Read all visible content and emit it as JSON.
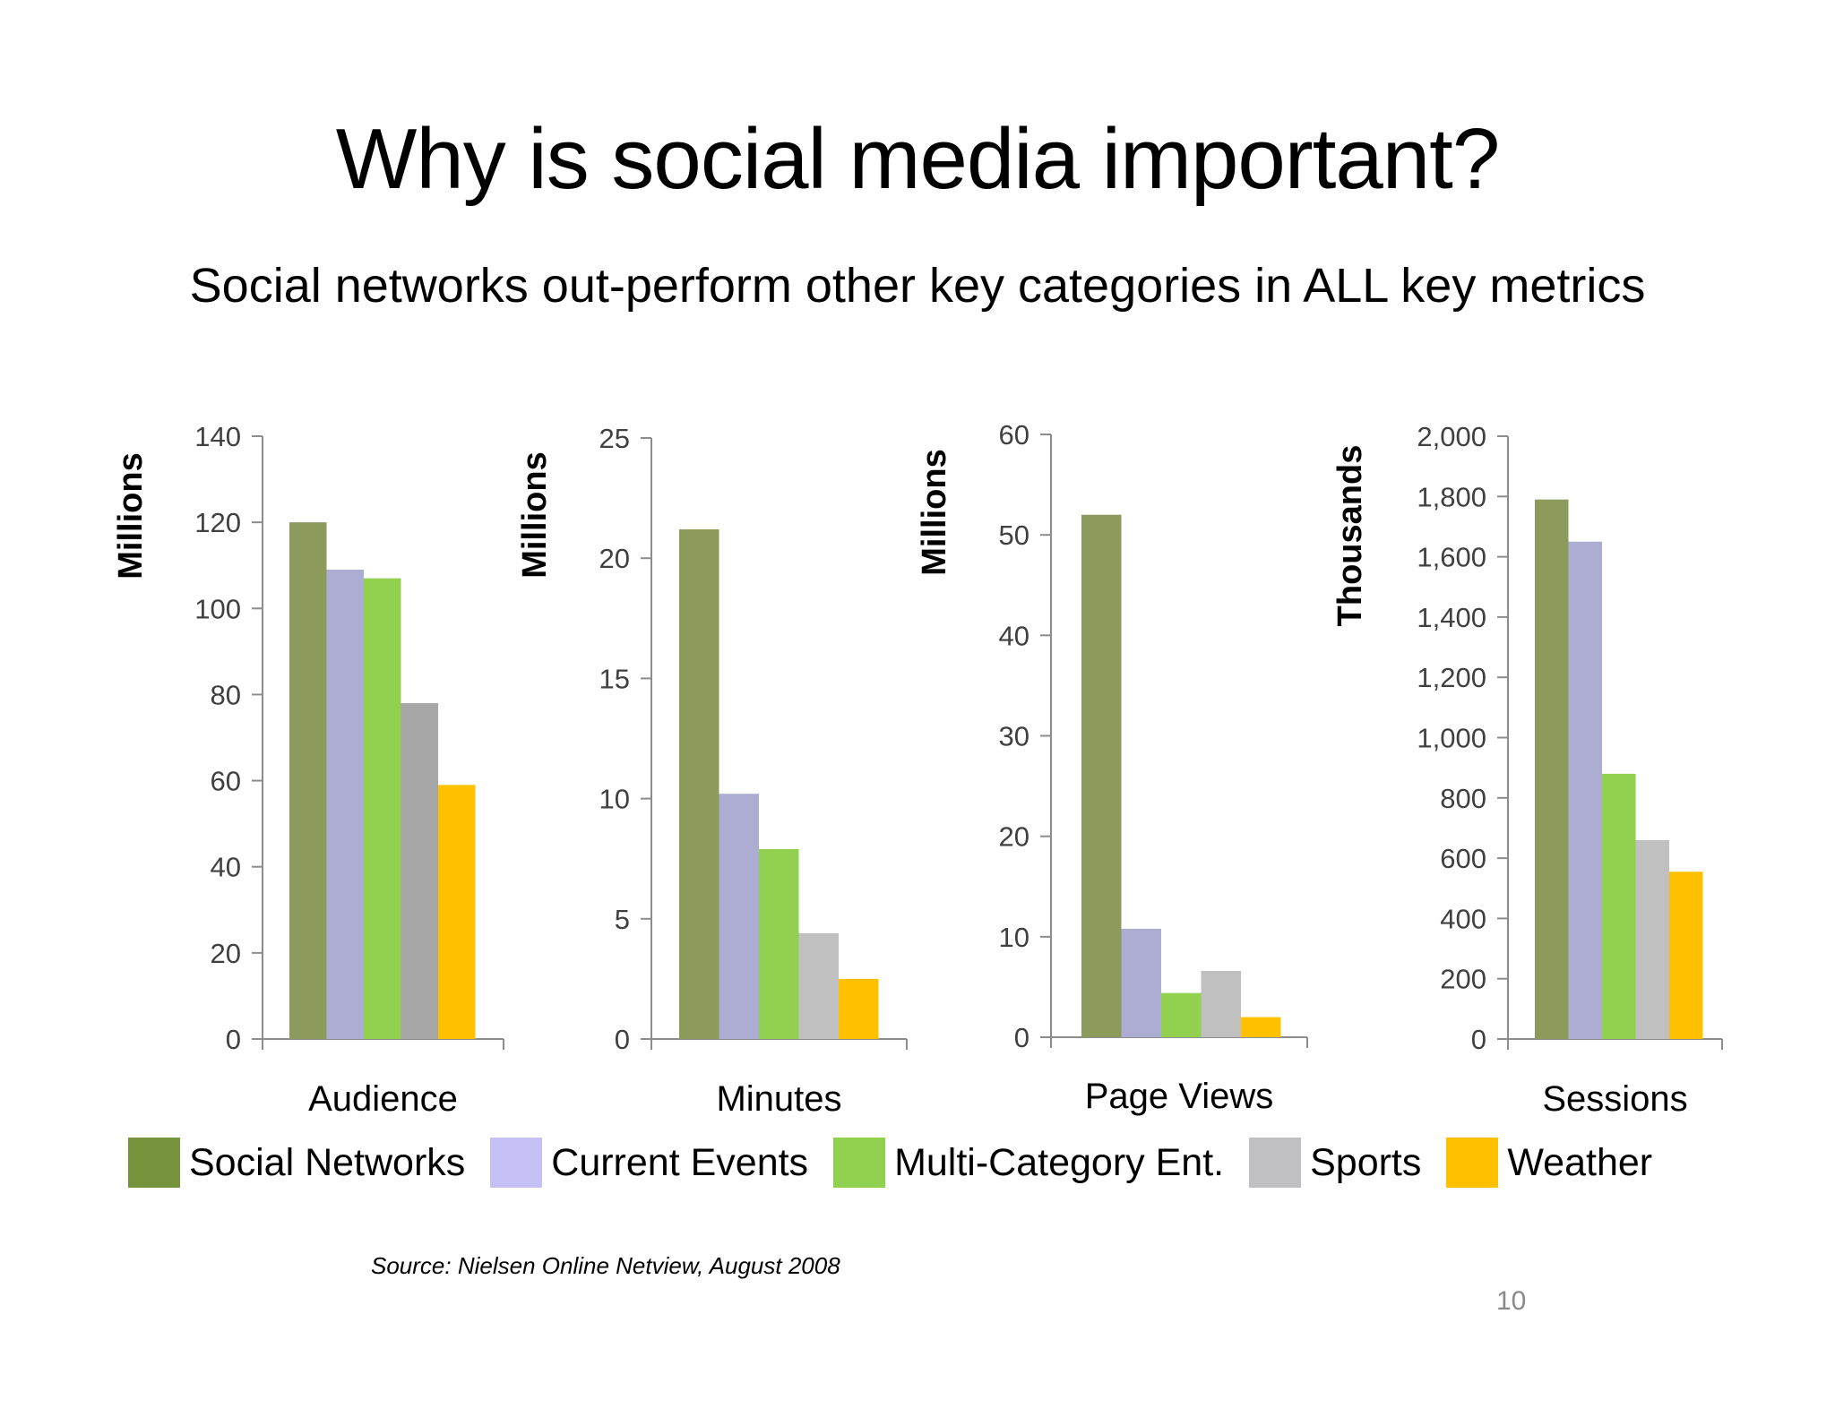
{
  "slide": {
    "title": "Why is  social media  important?",
    "subtitle": "Social networks out-perform other key categories in ALL key metrics",
    "source": "Source: Nielsen Online Netview, August 2008",
    "page_number": "10"
  },
  "legend": [
    {
      "name": "Social Networks",
      "color": "#77933c"
    },
    {
      "name": "Current Events",
      "color": "#c5c0f5"
    },
    {
      "name": "Multi-Category Ent.",
      "color": "#92d050"
    },
    {
      "name": "Sports",
      "color": "#c0bfc2"
    },
    {
      "name": "Weather",
      "color": "#ffc000"
    }
  ],
  "chart_data": [
    {
      "type": "bar",
      "xlabel": "Audience",
      "ylabel": "Millions",
      "ylim": [
        0,
        140
      ],
      "yticks": [
        "0",
        "20",
        "40",
        "60",
        "80",
        "100",
        "120",
        "140"
      ],
      "categories": [
        "Social Networks",
        "Current Events",
        "Multi-Category Ent.",
        "Sports",
        "Weather"
      ],
      "values": [
        120,
        109,
        107,
        78,
        59
      ],
      "colors": [
        "#8c9a5c",
        "#adadd4",
        "#92d050",
        "#a6a6a6",
        "#ffc000"
      ]
    },
    {
      "type": "bar",
      "xlabel": "Minutes",
      "ylabel": "Millions",
      "ylim": [
        0,
        25
      ],
      "yticks": [
        "0",
        "5",
        "10",
        "15",
        "20",
        "25"
      ],
      "categories": [
        "Social Networks",
        "Current Events",
        "Multi-Category Ent.",
        "Sports",
        "Weather"
      ],
      "values": [
        21.2,
        10.2,
        7.9,
        4.4,
        2.5
      ],
      "colors": [
        "#8c9a5c",
        "#adadd4",
        "#92d050",
        "#c0c0c0",
        "#ffc000"
      ]
    },
    {
      "type": "bar",
      "xlabel": "Page Views",
      "ylabel": "Millions",
      "ylim": [
        0,
        60
      ],
      "yticks": [
        "0",
        "10",
        "20",
        "30",
        "40",
        "50",
        "60"
      ],
      "categories": [
        "Social Networks",
        "Current Events",
        "Multi-Category Ent.",
        "Sports",
        "Weather"
      ],
      "values": [
        52,
        10.8,
        4.4,
        6.6,
        2
      ],
      "colors": [
        "#8c9a5c",
        "#adadd4",
        "#92d050",
        "#c0c0c0",
        "#ffc000"
      ]
    },
    {
      "type": "bar",
      "xlabel": "Sessions",
      "ylabel": "Thousands",
      "ylim": [
        0,
        2000
      ],
      "yticks": [
        "0",
        "200",
        "400",
        "600",
        "800",
        "1,000",
        "1,200",
        "1,400",
        "1,600",
        "1,800",
        "2,000"
      ],
      "categories": [
        "Social Networks",
        "Current Events",
        "Multi-Category Ent.",
        "Sports",
        "Weather"
      ],
      "values": [
        1790,
        1650,
        880,
        660,
        555
      ],
      "colors": [
        "#8c9a5c",
        "#adadd4",
        "#92d050",
        "#c0c0c0",
        "#ffc000"
      ]
    }
  ]
}
